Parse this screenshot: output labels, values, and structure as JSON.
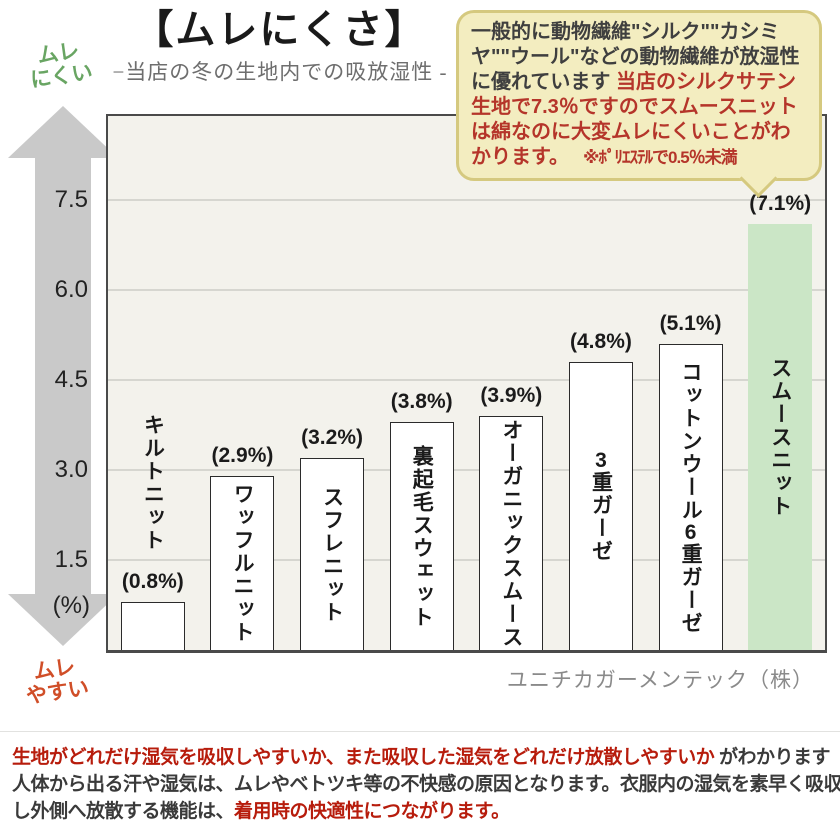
{
  "header": {
    "title": "【ムレにくさ】",
    "subtitle": "−当店の冬の生地内での吸放湿性 -"
  },
  "bubble": {
    "text_dark": "一般的に動物繊維\"シルク\"\"カシミヤ\"\"ウール\"などの動物繊維が放湿性に優れています ",
    "text_red": "当店のシルクサテン生地で7.3％ですのでスムースニットは綿なのに大変ムレにくいことがわかります。",
    "note": "※ﾎﾟﾘｴｽﾃﾙで0.5％未満",
    "bg_color": "#f3edc0",
    "border_color": "#d5c97f",
    "red_color": "#b5352a",
    "dark_color": "#3f3f3f"
  },
  "axis_arrow": {
    "top_line1": "ムレ",
    "top_line2": "にくい",
    "bottom_line1": "ムレ",
    "bottom_line2": "やすい",
    "top_color": "#69a563",
    "bottom_color": "#d04e28",
    "arrow_color": "#c9c9c9"
  },
  "chart_data": {
    "type": "bar",
    "categories": [
      "キルトニット",
      "ワッフルニット",
      "スフレニット",
      "裏起毛スウェット",
      "オーガニックスムース",
      "3重ガーゼ",
      "コットンウール6重ガーゼ",
      "スムースニット"
    ],
    "values": [
      0.8,
      2.9,
      3.2,
      3.8,
      3.9,
      4.8,
      5.1,
      7.1
    ],
    "value_labels": [
      "(0.8%)",
      "(2.9%)",
      "(3.2%)",
      "(3.8%)",
      "(3.9%)",
      "(4.8%)",
      "(5.1%)",
      "(7.1%)"
    ],
    "yticks": [
      {
        "v": 7.5,
        "label": "7.5"
      },
      {
        "v": 6.0,
        "label": "6.0"
      },
      {
        "v": 4.5,
        "label": "4.5"
      },
      {
        "v": 3.0,
        "label": "3.0"
      },
      {
        "v": 1.5,
        "label": "1.5"
      }
    ],
    "y_unit_label": "(%)",
    "ylim": [
      0,
      8.9
    ],
    "grid": true,
    "highlight_index": 7,
    "bar_fill": "#ffffff",
    "bar_border": "#2b2b2b",
    "highlight_fill": "#cbe6c6",
    "plot_bg": "#f3f2ec",
    "title": "ムレにくさ",
    "subtitle": "当店の冬の生地内での吸放湿性",
    "unit": "%"
  },
  "credit": "ユニチカガーメンテック（株）",
  "footer": {
    "red_color": "#b71c0c",
    "dark_color": "#3a3a3a",
    "lines": [
      [
        {
          "text": "生地がどれだけ湿気を吸収しやすいか、また吸収した湿気をどれだけ放散しやすいか",
          "color": "red"
        },
        {
          "text": " がわかります",
          "color": "dark"
        }
      ],
      [
        {
          "text": "人体から出る汗や湿気は、ムレやベトツキ等の不快感の原因となります。衣服内の湿気を素早く吸収",
          "color": "dark"
        }
      ],
      [
        {
          "text": "し外側へ放散する機能は、",
          "color": "dark"
        },
        {
          "text": "着用時の快適性につながります。",
          "color": "red"
        }
      ]
    ]
  }
}
